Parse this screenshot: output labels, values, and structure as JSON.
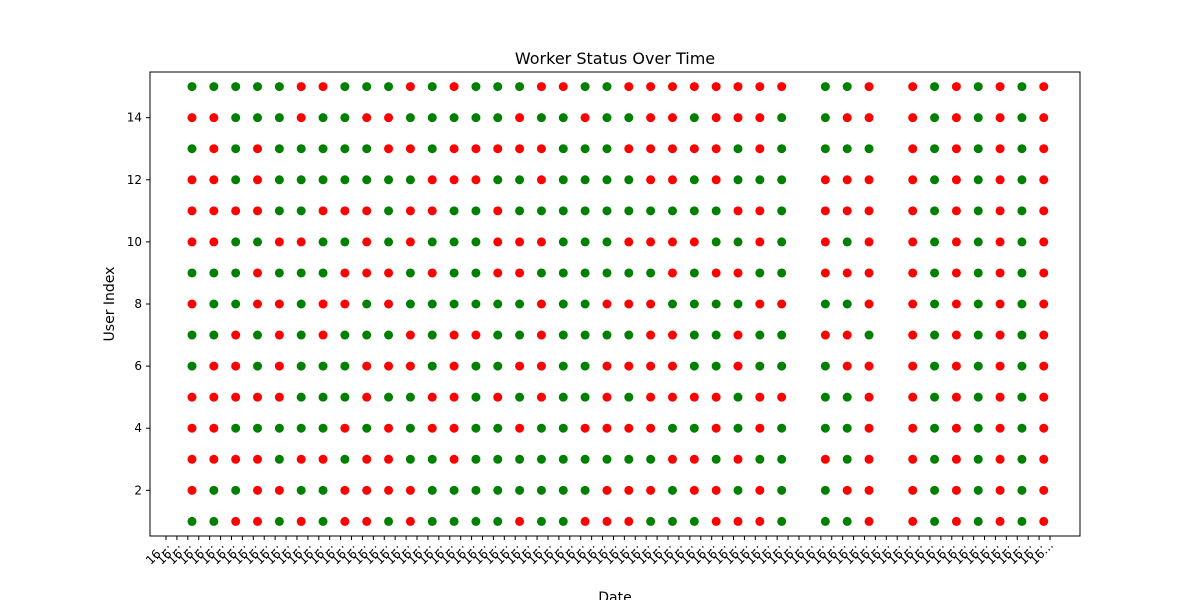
{
  "chart_data": {
    "type": "scatter",
    "title": "Worker Status Over Time",
    "xlabel": "Date",
    "ylabel": "User Index",
    "yticks": [
      2,
      4,
      6,
      8,
      10,
      12,
      14
    ],
    "ylim": [
      0.53,
      15.47
    ],
    "x_positions": 40,
    "x_tick_count": 82,
    "x_tick_label_prefix": "16",
    "colors": {
      "G": "#008000",
      "R": "#ff0000"
    },
    "legend": {
      "G": "green",
      "R": "red"
    },
    "columns": [
      {
        "x": 1,
        "status": "GRRRRGGRGRRRGRG"
      },
      {
        "x": 2,
        "status": "GGRRRRGGGRRRRRG"
      },
      {
        "x": 3,
        "status": "RGRGRRRGGGRGGGG"
      },
      {
        "x": 4,
        "status": "RRRGRGGRRGRRRGG"
      },
      {
        "x": 5,
        "status": "GRGGRRRRGRGGGGG"
      },
      {
        "x": 6,
        "status": "RGRGGGGGGRGGGRR"
      },
      {
        "x": 7,
        "status": "GGRGGGRRGGRGGGR"
      },
      {
        "x": 8,
        "status": "RRGRGGGRRGRGGGG"
      },
      {
        "x": 9,
        "status": "RRRGRRGGRRRGGRG"
      },
      {
        "x": 10,
        "status": "GRRRGRGRRGGGRRG"
      },
      {
        "x": 11,
        "status": "RRGGGRRGGRRGRGR"
      },
      {
        "x": 12,
        "status": "GGGRRGGGRGRRGGG"
      },
      {
        "x": 13,
        "status": "GGRRRRRGGGGRRGR"
      },
      {
        "x": 14,
        "status": "GGGGGGRGGGGRRGG"
      },
      {
        "x": 15,
        "status": "GGGGRGGGRRRGRGG"
      },
      {
        "x": 16,
        "status": "RGGRGRGGRRGGRRG"
      },
      {
        "x": 17,
        "status": "GGGGRRRRGRGRRGR"
      },
      {
        "x": 18,
        "status": "GGGGGGGGGGGGGGR"
      },
      {
        "x": 19,
        "status": "RGGRGGGGGGGGGRG"
      },
      {
        "x": 20,
        "status": "RRGRRRGRGGGGGGG"
      },
      {
        "x": 21,
        "status": "RRGRGRGRGRGGRGR"
      },
      {
        "x": 22,
        "status": "GRGRRRRRGRGRRRR"
      },
      {
        "x": 23,
        "status": "GGRGRRRGRRGRRRR"
      },
      {
        "x": 24,
        "status": "GRRGRGGGGRGGRGR"
      },
      {
        "x": 25,
        "status": "RRGRRGGGRGGRRRR"
      },
      {
        "x": 26,
        "status": "RGRGGRRGRGRGGRR"
      },
      {
        "x": 27,
        "status": "RRGRRGGRGRRGRRR"
      },
      {
        "x": 28,
        "status": "GGGGRGGRGGGGGGR"
      },
      {
        "x": 30,
        "status": "GGRGGGRGRRRRGGG"
      },
      {
        "x": 31,
        "status": "GRGGGRRGRGRRGRG"
      },
      {
        "x": 32,
        "status": "RRRRRRGRRRRRGRR"
      },
      {
        "x": 34,
        "status": "RRRRRRRRRRRRRRR"
      },
      {
        "x": 35,
        "status": "GGGGGGGGGGGGGGG"
      },
      {
        "x": 36,
        "status": "RRRRRRRRRRRRRRR"
      },
      {
        "x": 37,
        "status": "GGGGGGGGGGGGGGG"
      },
      {
        "x": 38,
        "status": "RRRRRRRRRRRRRRR"
      },
      {
        "x": 39,
        "status": "GGGGGGGGGGGGGGG"
      },
      {
        "x": 40,
        "status": "RRRRRRRRRRRRRRR"
      }
    ]
  }
}
